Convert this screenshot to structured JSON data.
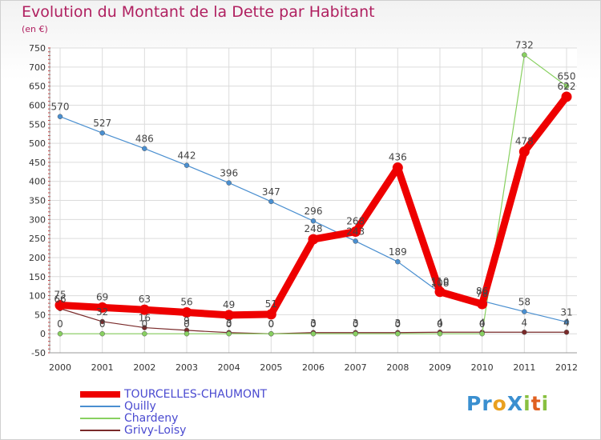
{
  "title": "Evolution du Montant de la Dette par Habitant",
  "unit": "(en €)",
  "logo": "ProXiti",
  "chart_data": {
    "type": "line",
    "title": "Evolution du Montant de la Dette par Habitant",
    "ylabel": "(en €)",
    "xlabel": "",
    "x": [
      "2000",
      "2001",
      "2002",
      "2003",
      "2004",
      "2005",
      "2006",
      "2007",
      "2008",
      "2009",
      "2010",
      "2011",
      "2012"
    ],
    "ylim": [
      -50,
      750
    ],
    "yticks": [
      -50,
      0,
      50,
      100,
      150,
      200,
      250,
      300,
      350,
      400,
      450,
      500,
      550,
      600,
      650,
      700,
      750
    ],
    "grid": true,
    "series": [
      {
        "name": "TOURCELLES-CHAUMONT",
        "color": "#ee0000",
        "values": [
          75,
          69,
          63,
          56,
          49,
          51,
          248,
          268,
          436,
          110,
          78,
          478,
          622
        ],
        "labels": [
          "75",
          "69",
          "63",
          "56",
          "49",
          "51",
          "248",
          "268",
          "436",
          "110",
          "78",
          "478",
          "622"
        ]
      },
      {
        "name": "Quilly",
        "color": "#4a8fd0",
        "values": [
          570,
          527,
          486,
          442,
          396,
          347,
          296,
          243,
          189,
          108,
          86,
          58,
          31
        ],
        "labels": [
          "570",
          "527",
          "486",
          "442",
          "396",
          "347",
          "296",
          "243",
          "189",
          "108",
          "86",
          "58",
          "31"
        ]
      },
      {
        "name": "Chardeny",
        "color": "#88d060",
        "values": [
          0,
          0,
          0,
          0,
          0,
          0,
          0,
          0,
          0,
          0,
          0,
          732,
          650
        ],
        "labels": [
          "0",
          "0",
          "0",
          "0",
          "0",
          "0",
          "0",
          "0",
          "0",
          "0",
          "0",
          "732",
          "650"
        ]
      },
      {
        "name": "Grivy-Loisy",
        "color": "#7a2a2a",
        "values": [
          66,
          32,
          16,
          9,
          3,
          0,
          3,
          3,
          3,
          4,
          4,
          4,
          4
        ],
        "labels": [
          "66",
          "32",
          "16",
          "9",
          "3",
          "0",
          "3",
          "3",
          "3",
          "4",
          "4",
          "4",
          "4"
        ]
      }
    ]
  }
}
